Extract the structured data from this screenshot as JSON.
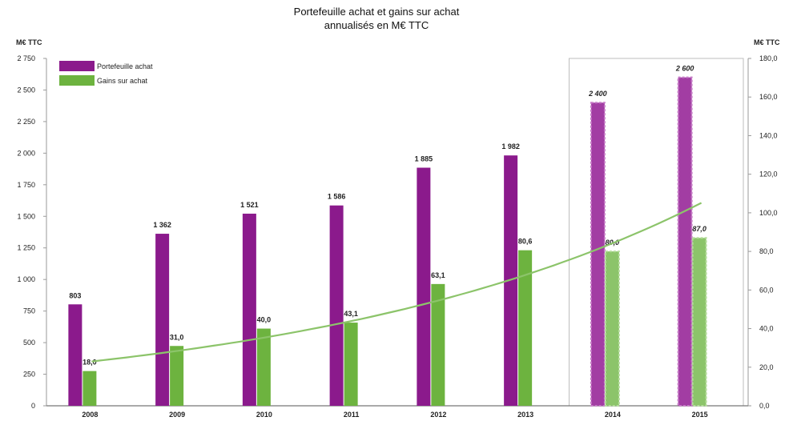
{
  "chart_data": {
    "type": "bar",
    "title_line1": "Portefeuille achat et gains sur achat",
    "title_line2": "annualisés en M€ TTC",
    "ylabel_left": "M€ TTC",
    "ylabel_right": "M€ TTC",
    "ylim_left": [
      0,
      2750
    ],
    "ylim_right": [
      0,
      180
    ],
    "yticks_left": [
      "0",
      "250",
      "500",
      "750",
      "1 000",
      "1 250",
      "1 500",
      "1 750",
      "2 000",
      "2 250",
      "2 500",
      "2 750"
    ],
    "yticks_right": [
      "0,0",
      "20,0",
      "40,0",
      "60,0",
      "80,0",
      "100,0",
      "120,0",
      "140,0",
      "160,0",
      "180,0"
    ],
    "categories": [
      "2008",
      "2009",
      "2010",
      "2011",
      "2012",
      "2013",
      "2014",
      "2015"
    ],
    "forecast_categories": [
      "2014",
      "2015"
    ],
    "legend_placement": "top-left",
    "grid": false,
    "series": [
      {
        "name": "Portefeuille achat",
        "axis": "left",
        "color": "#8B1A8C",
        "values": [
          803,
          1362,
          1521,
          1586,
          1885,
          1982,
          2400,
          2600
        ],
        "labels": [
          "803",
          "1 362",
          "1 521",
          "1 586",
          "1 885",
          "1 982",
          "2 400",
          "2 600"
        ]
      },
      {
        "name": "Gains sur achat",
        "axis": "right",
        "color": "#6DB33F",
        "values": [
          18.0,
          31.0,
          40.0,
          43.1,
          63.1,
          80.6,
          80.0,
          87.0
        ],
        "labels": [
          "18,0",
          "31,0",
          "40,0",
          "43,1",
          "63,1",
          "80,6",
          "80,0",
          "87,0"
        ]
      }
    ],
    "trendline": {
      "series": "Gains sur achat",
      "color": "#8CC46A",
      "type": "exponential"
    }
  }
}
